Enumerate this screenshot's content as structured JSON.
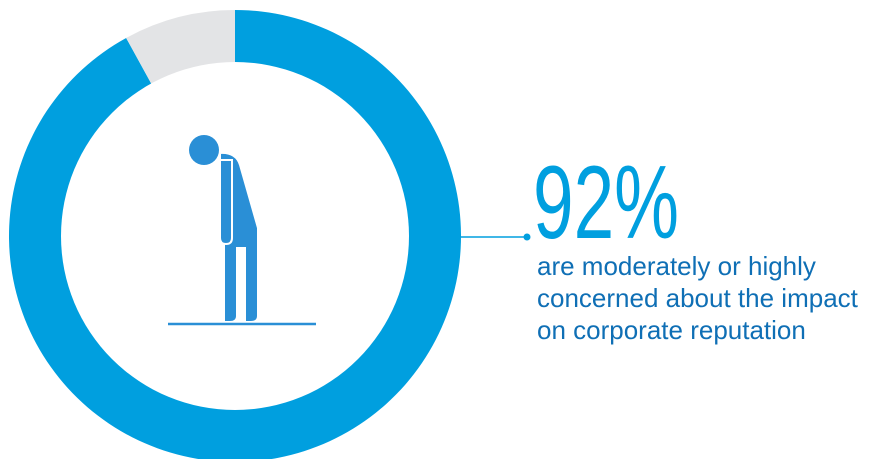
{
  "chart_data": {
    "type": "donut",
    "values": [
      92,
      8
    ],
    "colors": [
      "#009fdf",
      "#e3e4e6"
    ],
    "value_labels": [
      "92%",
      null
    ],
    "caption": "are moderately or highly concerned about the impact on corporate reputation"
  }
}
